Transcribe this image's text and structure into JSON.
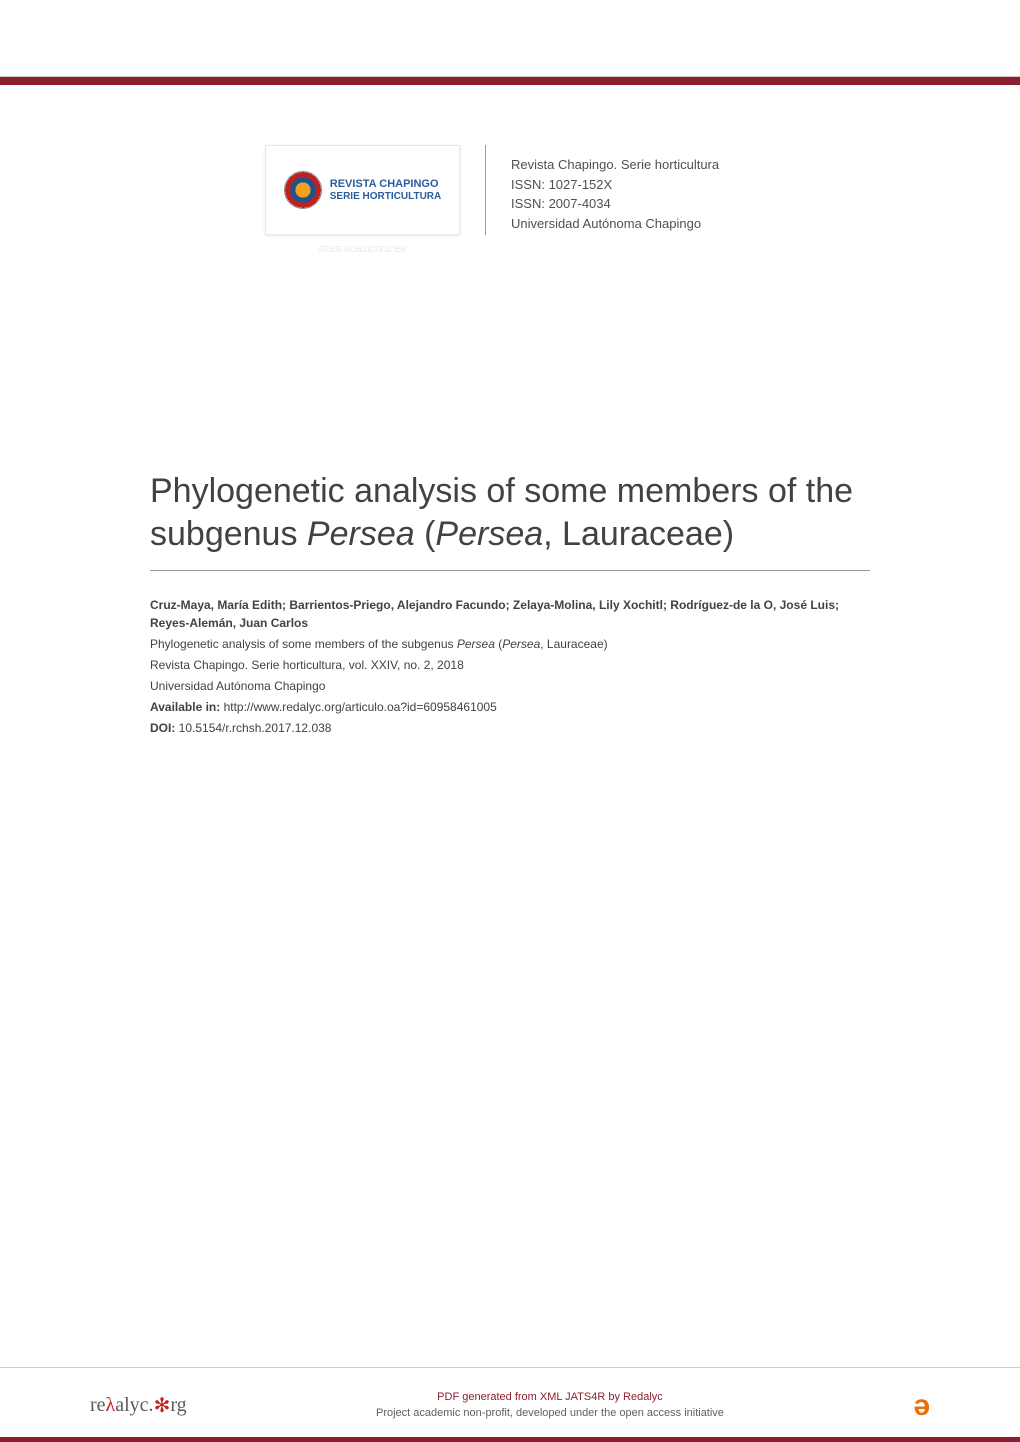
{
  "colors": {
    "accent_bar": "#8b1e2f",
    "title_text": "#424242",
    "body_text": "#424242",
    "meta_text": "#505050",
    "link": "#424242",
    "oa_orange": "#e8710a",
    "divider": "#999999",
    "light_rule": "#cccccc"
  },
  "logo": {
    "line1": "REVISTA CHAPINGO",
    "line2": "SERIE HORTICULTURA"
  },
  "journal": {
    "name": "Revista Chapingo. Serie horticultura",
    "issn1": "ISSN: 1027-152X",
    "issn2": "ISSN: 2007-4034",
    "publisher": "Universidad Autónoma Chapingo"
  },
  "title": {
    "prefix": "Phylogenetic analysis of some members of the subgenus ",
    "italic1": "Persea",
    "mid": " (",
    "italic2": "Persea",
    "suffix": ", Lauraceae)"
  },
  "details": {
    "authors": "Cruz-Maya, María Edith; Barrientos-Priego, Alejandro Facundo; Zelaya-Molina, Lily Xochitl; Rodríguez-de la O, José Luis; Reyes-Alemán, Juan Carlos",
    "article_title_prefix": "Phylogenetic analysis of some members of the subgenus ",
    "article_title_italic1": "Persea",
    "article_title_mid": " (",
    "article_title_italic2": "Persea",
    "article_title_suffix": ", Lauraceae)",
    "citation": "Revista Chapingo. Serie horticultura, vol. XXIV, no. 2, 2018",
    "institution": "Universidad Autónoma Chapingo",
    "available_label": "Available in: ",
    "available_url": "http://www.redalyc.org/articulo.oa?id=60958461005",
    "doi_label": "DOI: ",
    "doi_value": "10.5154/r.rchsh.2017.12.038"
  },
  "footer": {
    "redalyc_prefix": "re",
    "redalyc_lambda": "λ",
    "redalyc_mid": "alyc.",
    "redalyc_suffix": "rg",
    "pdf_line": "PDF generated from XML JATS4R by Redalyc",
    "project_line": "Project academic non-profit, developed under the open access initiative",
    "oa_symbol": "ə"
  }
}
